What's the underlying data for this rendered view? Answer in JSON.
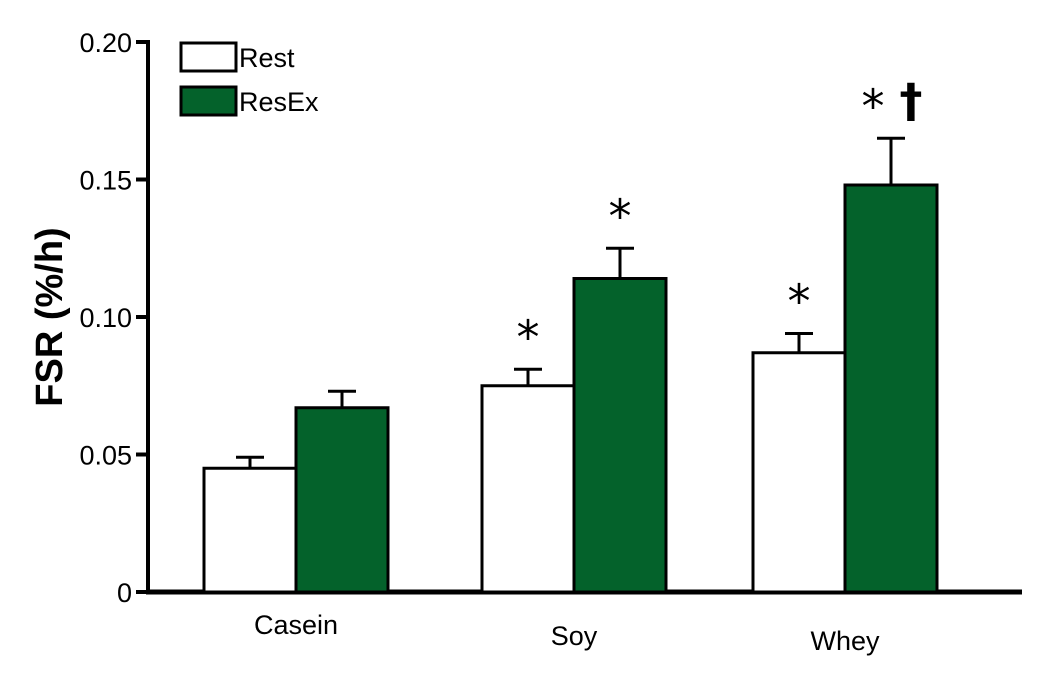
{
  "chart_data": {
    "type": "bar",
    "title": "",
    "xlabel": "",
    "ylabel": "FSR (%/h)",
    "ylim": [
      0,
      0.2
    ],
    "yticks": [
      {
        "value": 0,
        "label": "0"
      },
      {
        "value": 0.05,
        "label": "0.05"
      },
      {
        "value": 0.1,
        "label": "0.10"
      },
      {
        "value": 0.15,
        "label": "0.15"
      },
      {
        "value": 0.2,
        "label": "0.20"
      }
    ],
    "categories": [
      "Casein",
      "Soy",
      "Whey"
    ],
    "series": [
      {
        "name": "Rest",
        "color": "#ffffff",
        "values": [
          0.045,
          0.075,
          0.087
        ],
        "errors": [
          0.004,
          0.006,
          0.007
        ],
        "annotations": [
          "",
          "*",
          "*"
        ]
      },
      {
        "name": "ResEx",
        "color": "#04622b",
        "values": [
          0.067,
          0.114,
          0.148
        ],
        "errors": [
          0.006,
          0.011,
          0.017
        ],
        "annotations": [
          "",
          "*",
          "*†"
        ]
      }
    ],
    "legend_position": "top-left",
    "grid": false
  }
}
